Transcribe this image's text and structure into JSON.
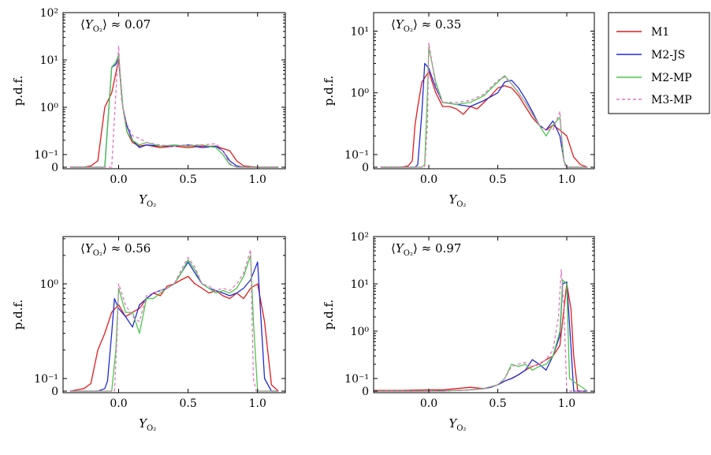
{
  "figure": {
    "panels": [
      {
        "annotation": "⟨Y_O₂⟩ ≈ 0.07",
        "annot_value": "≈ 0.07",
        "ylabel": "p.d.f.",
        "xlabel": "Y",
        "xlabel_sub": "O₂"
      },
      {
        "annotation": "⟨Y_O₂⟩ ≈ 0.35",
        "annot_value": "≈ 0.35",
        "ylabel": "p.d.f.",
        "xlabel": "Y",
        "xlabel_sub": "O₂"
      },
      {
        "annotation": "⟨Y_O₂⟩ ≈ 0.56",
        "annot_value": "≈ 0.56",
        "ylabel": "p.d.f.",
        "xlabel": "Y",
        "xlabel_sub": "O₂"
      },
      {
        "annotation": "⟨Y_O₂⟩ ≈ 0.97",
        "annot_value": "≈ 0.97",
        "ylabel": "p.d.f.",
        "xlabel": "Y",
        "xlabel_sub": "O₂"
      }
    ],
    "legend": {
      "entries": [
        {
          "label": "M1",
          "color": "#e41a1c",
          "dash": "solid"
        },
        {
          "label": "M2-JS",
          "color": "#1f2bd6",
          "dash": "solid"
        },
        {
          "label": "M2-MP",
          "color": "#4cc74c",
          "dash": "solid"
        },
        {
          "label": "M3-MP",
          "color": "#e377c2",
          "dash": "dashed"
        }
      ]
    }
  },
  "chart_data": [
    {
      "type": "line",
      "yscale": "symlog",
      "xlim": [
        -0.4,
        1.2
      ],
      "ylim": [
        0,
        100
      ],
      "xticks": [
        "0.0",
        "0.5",
        "1.0"
      ],
      "yticks": [
        "0",
        "10⁻¹",
        "10⁰",
        "10¹",
        "10²"
      ],
      "xlabel": "Y_O₂",
      "ylabel": "p.d.f.",
      "annotation": "⟨Y_O₂⟩ ≈ 0.07",
      "series": [
        {
          "name": "M1",
          "x": [
            -0.35,
            -0.25,
            -0.2,
            -0.15,
            -0.1,
            -0.05,
            0,
            0.03,
            0.06,
            0.1,
            0.15,
            0.2,
            0.3,
            0.4,
            0.5,
            0.6,
            0.7,
            0.8,
            0.85,
            0.9,
            1.0,
            1.15
          ],
          "y": [
            0,
            0,
            0.01,
            0.05,
            1.0,
            2.0,
            10,
            1.0,
            0.3,
            0.18,
            0.15,
            0.16,
            0.14,
            0.15,
            0.14,
            0.15,
            0.15,
            0.12,
            0.05,
            0.01,
            0,
            0
          ]
        },
        {
          "name": "M2-JS",
          "x": [
            -0.35,
            -0.15,
            -0.1,
            -0.05,
            -0.02,
            0,
            0.03,
            0.06,
            0.1,
            0.15,
            0.2,
            0.3,
            0.4,
            0.5,
            0.6,
            0.7,
            0.75,
            0.8,
            0.85,
            0.9,
            1.15
          ],
          "y": [
            0,
            0,
            0,
            7,
            8,
            12,
            1.0,
            0.4,
            0.2,
            0.14,
            0.16,
            0.15,
            0.15,
            0.16,
            0.14,
            0.15,
            0.12,
            0.05,
            0.01,
            0,
            0
          ]
        },
        {
          "name": "M2-MP",
          "x": [
            -0.35,
            -0.1,
            -0.05,
            -0.02,
            0,
            0.03,
            0.06,
            0.1,
            0.15,
            0.2,
            0.3,
            0.4,
            0.5,
            0.6,
            0.7,
            0.75,
            0.8,
            0.85,
            1.15
          ],
          "y": [
            0,
            0,
            7,
            9,
            13,
            1.0,
            0.3,
            0.2,
            0.16,
            0.18,
            0.15,
            0.16,
            0.15,
            0.16,
            0.14,
            0.1,
            0.02,
            0,
            0
          ]
        },
        {
          "name": "M3-MP",
          "x": [
            -0.35,
            -0.05,
            -0.02,
            0,
            0.02,
            0.05,
            0.1,
            0.15,
            0.2,
            0.3,
            0.4,
            0.5,
            0.6,
            0.7,
            0.75,
            0.8,
            0.85,
            1.15
          ],
          "y": [
            0,
            0,
            2.0,
            20,
            1.5,
            0.5,
            0.25,
            0.22,
            0.18,
            0.16,
            0.15,
            0.16,
            0.16,
            0.17,
            0.12,
            0.03,
            0,
            0
          ]
        }
      ]
    },
    {
      "type": "line",
      "yscale": "symlog",
      "xlim": [
        -0.4,
        1.2
      ],
      "ylim": [
        0,
        20
      ],
      "xticks": [
        "0.0",
        "0.5",
        "1.0"
      ],
      "yticks": [
        "0",
        "10⁻¹",
        "10⁰",
        "10¹"
      ],
      "xlabel": "Y_O₂",
      "ylabel": "p.d.f.",
      "annotation": "⟨Y_O₂⟩ ≈ 0.35",
      "series": [
        {
          "name": "M1",
          "x": [
            -0.35,
            -0.2,
            -0.15,
            -0.12,
            -0.1,
            -0.08,
            -0.05,
            0,
            0.05,
            0.1,
            0.15,
            0.2,
            0.25,
            0.3,
            0.35,
            0.4,
            0.45,
            0.5,
            0.55,
            0.6,
            0.65,
            0.7,
            0.75,
            0.8,
            0.85,
            0.9,
            0.95,
            1.0,
            1.05,
            1.1,
            1.15
          ],
          "y": [
            0,
            0,
            0.01,
            0.05,
            0.3,
            0.6,
            1.5,
            2.2,
            1.0,
            0.6,
            0.6,
            0.55,
            0.45,
            0.6,
            0.55,
            0.7,
            0.9,
            1.2,
            1.3,
            1.2,
            0.9,
            0.6,
            0.4,
            0.3,
            0.25,
            0.3,
            0.25,
            0.2,
            0.08,
            0.02,
            0
          ]
        },
        {
          "name": "M2-JS",
          "x": [
            -0.35,
            -0.1,
            -0.08,
            -0.05,
            -0.03,
            0,
            0.05,
            0.1,
            0.2,
            0.3,
            0.4,
            0.5,
            0.55,
            0.6,
            0.65,
            0.7,
            0.75,
            0.8,
            0.85,
            0.9,
            0.95,
            0.98,
            1.0,
            1.15
          ],
          "y": [
            0,
            0,
            0.02,
            0.5,
            3.0,
            2.5,
            1.2,
            0.7,
            0.65,
            0.6,
            0.75,
            1.0,
            1.5,
            1.6,
            1.2,
            0.8,
            0.5,
            0.3,
            0.25,
            0.35,
            0.2,
            0.05,
            0,
            0
          ]
        },
        {
          "name": "M2-MP",
          "x": [
            -0.35,
            -0.05,
            -0.03,
            -0.01,
            0,
            0.05,
            0.1,
            0.2,
            0.3,
            0.4,
            0.5,
            0.55,
            0.6,
            0.65,
            0.7,
            0.8,
            0.85,
            0.9,
            0.95,
            0.98,
            1.0,
            1.15
          ],
          "y": [
            0,
            0,
            0.02,
            1.0,
            5.5,
            1.5,
            0.7,
            0.65,
            0.7,
            0.9,
            1.5,
            1.9,
            1.4,
            1.0,
            0.7,
            0.3,
            0.2,
            0.3,
            0.4,
            0.05,
            0,
            0
          ]
        },
        {
          "name": "M3-MP",
          "x": [
            -0.35,
            -0.03,
            -0.01,
            0,
            0.05,
            0.1,
            0.2,
            0.3,
            0.4,
            0.5,
            0.55,
            0.6,
            0.65,
            0.7,
            0.8,
            0.85,
            0.9,
            0.95,
            0.97,
            0.99,
            1.15
          ],
          "y": [
            0,
            0,
            0.3,
            6.5,
            1.3,
            0.7,
            0.7,
            0.75,
            0.95,
            1.6,
            1.8,
            1.4,
            1.0,
            0.7,
            0.3,
            0.25,
            0.25,
            0.5,
            0.1,
            0,
            0
          ]
        }
      ]
    },
    {
      "type": "line",
      "yscale": "symlog",
      "xlim": [
        -0.4,
        1.2
      ],
      "ylim": [
        0,
        3
      ],
      "xticks": [
        "0.0",
        "0.5",
        "1.0"
      ],
      "yticks": [
        "0",
        "10⁻¹",
        "10⁰"
      ],
      "xlabel": "Y_O₂",
      "ylabel": "p.d.f.",
      "annotation": "⟨Y_O₂⟩ ≈ 0.56",
      "series": [
        {
          "name": "M1",
          "x": [
            -0.35,
            -0.3,
            -0.25,
            -0.2,
            -0.15,
            -0.1,
            -0.05,
            0,
            0.05,
            0.1,
            0.15,
            0.2,
            0.25,
            0.3,
            0.35,
            0.4,
            0.45,
            0.5,
            0.55,
            0.6,
            0.65,
            0.7,
            0.75,
            0.8,
            0.85,
            0.9,
            0.95,
            1.0,
            1.05,
            1.1,
            1.15
          ],
          "y": [
            0,
            0.01,
            0.02,
            0.06,
            0.2,
            0.3,
            0.5,
            0.6,
            0.45,
            0.5,
            0.55,
            0.7,
            0.8,
            0.75,
            0.95,
            1.0,
            1.1,
            1.2,
            1.0,
            0.9,
            0.8,
            0.85,
            0.75,
            0.7,
            0.8,
            0.7,
            0.9,
            1.0,
            0.4,
            0.05,
            0
          ]
        },
        {
          "name": "M2-JS",
          "x": [
            -0.35,
            -0.15,
            -0.1,
            -0.08,
            -0.05,
            -0.03,
            0,
            0.05,
            0.1,
            0.15,
            0.2,
            0.25,
            0.3,
            0.35,
            0.4,
            0.45,
            0.5,
            0.55,
            0.6,
            0.65,
            0.7,
            0.75,
            0.8,
            0.85,
            0.9,
            0.95,
            1.0,
            1.05,
            1.1,
            1.15
          ],
          "y": [
            0,
            0,
            0.02,
            0.08,
            0.3,
            0.7,
            0.55,
            0.45,
            0.35,
            0.6,
            0.7,
            0.8,
            0.85,
            0.9,
            1.0,
            1.3,
            1.7,
            1.3,
            1.0,
            0.9,
            0.85,
            0.8,
            0.75,
            0.8,
            0.9,
            1.1,
            1.7,
            0.1,
            0,
            0
          ]
        },
        {
          "name": "M2-MP",
          "x": [
            -0.35,
            -0.05,
            -0.02,
            0,
            0.05,
            0.1,
            0.15,
            0.2,
            0.25,
            0.3,
            0.35,
            0.4,
            0.45,
            0.5,
            0.55,
            0.6,
            0.65,
            0.7,
            0.75,
            0.8,
            0.85,
            0.9,
            0.95,
            0.97,
            1.0,
            1.15
          ],
          "y": [
            0,
            0,
            0.2,
            0.9,
            0.5,
            0.5,
            0.3,
            0.7,
            0.7,
            0.8,
            0.9,
            1.0,
            1.3,
            1.8,
            1.4,
            1.0,
            0.9,
            0.8,
            0.85,
            0.8,
            0.9,
            1.2,
            2.0,
            0.4,
            0,
            0
          ]
        },
        {
          "name": "M3-MP",
          "x": [
            -0.35,
            -0.03,
            -0.01,
            0,
            0.05,
            0.1,
            0.15,
            0.2,
            0.25,
            0.3,
            0.35,
            0.4,
            0.45,
            0.5,
            0.55,
            0.6,
            0.65,
            0.7,
            0.75,
            0.8,
            0.85,
            0.9,
            0.95,
            0.97,
            0.99,
            1.15
          ],
          "y": [
            0,
            0,
            0.3,
            1.0,
            0.6,
            0.45,
            0.4,
            0.75,
            0.8,
            0.85,
            0.9,
            1.0,
            1.4,
            1.9,
            1.5,
            1.0,
            0.95,
            0.85,
            0.9,
            0.85,
            1.0,
            1.3,
            2.3,
            0.1,
            0,
            0
          ]
        }
      ]
    },
    {
      "type": "line",
      "yscale": "symlog",
      "xlim": [
        -0.4,
        1.2
      ],
      "ylim": [
        0,
        100
      ],
      "xticks": [
        "0.0",
        "0.5",
        "1.0"
      ],
      "yticks": [
        "0",
        "10⁻¹",
        "10⁰",
        "10¹",
        "10²"
      ],
      "xlabel": "Y_O₂",
      "ylabel": "p.d.f.",
      "annotation": "⟨Y_O₂⟩ ≈ 0.97",
      "series": [
        {
          "name": "M1",
          "x": [
            -0.4,
            -0.2,
            0.0,
            0.1,
            0.2,
            0.3,
            0.4,
            0.5,
            0.55,
            0.6,
            0.65,
            0.7,
            0.75,
            0.8,
            0.85,
            0.9,
            0.95,
            1.0,
            1.03,
            1.05,
            1.08,
            1.15
          ],
          "y": [
            0.005,
            0.005,
            0.01,
            0.01,
            0.02,
            0.03,
            0.02,
            0.05,
            0.08,
            0.1,
            0.12,
            0.15,
            0.18,
            0.2,
            0.25,
            0.3,
            0.5,
            10,
            3.0,
            0.3,
            0,
            0
          ]
        },
        {
          "name": "M2-JS",
          "x": [
            -0.4,
            0.0,
            0.2,
            0.3,
            0.4,
            0.45,
            0.5,
            0.55,
            0.6,
            0.65,
            0.7,
            0.75,
            0.8,
            0.85,
            0.9,
            0.95,
            0.97,
            1.0,
            1.03,
            1.05,
            1.15
          ],
          "y": [
            0,
            0,
            0.005,
            0.01,
            0.02,
            0.03,
            0.05,
            0.08,
            0.1,
            0.12,
            0.15,
            0.25,
            0.2,
            0.15,
            0.3,
            0.8,
            10,
            11,
            0.5,
            0,
            0
          ]
        },
        {
          "name": "M2-MP",
          "x": [
            -0.4,
            0.1,
            0.2,
            0.3,
            0.4,
            0.5,
            0.55,
            0.6,
            0.65,
            0.7,
            0.75,
            0.8,
            0.85,
            0.9,
            0.95,
            0.97,
            1.0,
            1.02,
            1.15
          ],
          "y": [
            0,
            0,
            0.005,
            0.01,
            0.02,
            0.05,
            0.1,
            0.2,
            0.18,
            0.2,
            0.15,
            0.18,
            0.2,
            0.3,
            1.0,
            12,
            10,
            0.1,
            0
          ]
        },
        {
          "name": "M3-MP",
          "x": [
            -0.4,
            0.1,
            0.2,
            0.3,
            0.4,
            0.5,
            0.55,
            0.6,
            0.65,
            0.7,
            0.75,
            0.8,
            0.85,
            0.9,
            0.94,
            0.96,
            0.98,
            1.0,
            1.15
          ],
          "y": [
            0,
            0,
            0.005,
            0.01,
            0.02,
            0.05,
            0.1,
            0.18,
            0.2,
            0.22,
            0.18,
            0.2,
            0.25,
            0.4,
            2.0,
            20,
            3.0,
            0,
            0
          ]
        }
      ]
    }
  ]
}
